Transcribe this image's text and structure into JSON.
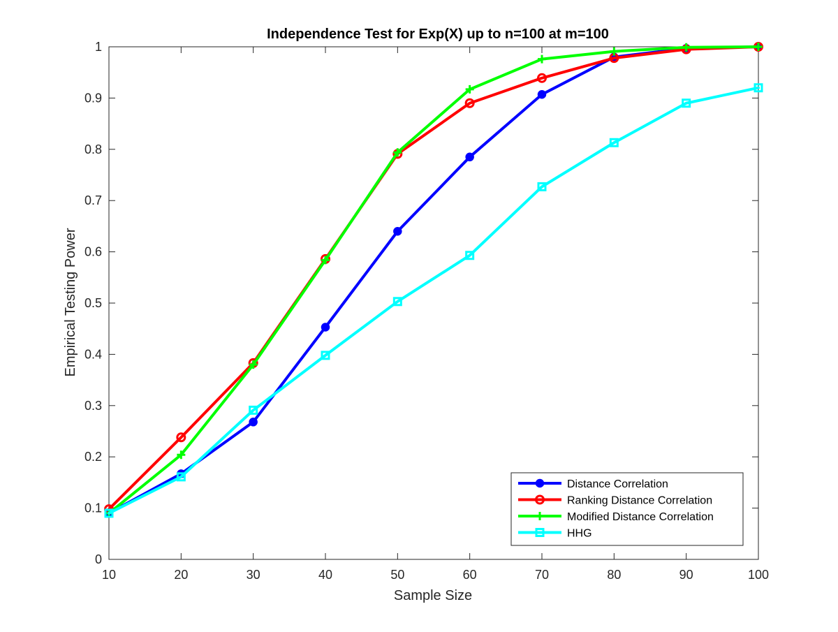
{
  "chart_data": {
    "type": "line",
    "title": "Independence Test for Exp(X) up to n=100 at m=100",
    "xlabel": "Sample Size",
    "ylabel": "Empirical Testing Power",
    "xlim": [
      10,
      100
    ],
    "ylim": [
      0,
      1
    ],
    "xticks": [
      10,
      20,
      30,
      40,
      50,
      60,
      70,
      80,
      90,
      100
    ],
    "yticks": [
      0,
      0.1,
      0.2,
      0.3,
      0.4,
      0.5,
      0.6,
      0.7,
      0.8,
      0.9,
      1
    ],
    "x": [
      10,
      20,
      30,
      40,
      50,
      60,
      70,
      80,
      90,
      100
    ],
    "grid": false,
    "legend_position": "bottom-right",
    "series": [
      {
        "name": "Distance Correlation",
        "color": "#0000ff",
        "marker": "filled-circle",
        "values": [
          0.09,
          0.167,
          0.268,
          0.453,
          0.64,
          0.785,
          0.907,
          0.98,
          0.997,
          1.0
        ]
      },
      {
        "name": "Ranking Distance Correlation",
        "color": "#ff0000",
        "marker": "open-circle",
        "values": [
          0.098,
          0.238,
          0.383,
          0.586,
          0.791,
          0.89,
          0.939,
          0.978,
          0.995,
          1.0
        ]
      },
      {
        "name": "Modified Distance Correlation",
        "color": "#00ff00",
        "marker": "plus",
        "values": [
          0.09,
          0.204,
          0.38,
          0.584,
          0.794,
          0.917,
          0.976,
          0.991,
          0.999,
          1.0
        ]
      },
      {
        "name": "HHG",
        "color": "#00ffff",
        "marker": "square",
        "values": [
          0.09,
          0.161,
          0.291,
          0.398,
          0.503,
          0.593,
          0.727,
          0.813,
          0.89,
          0.92
        ]
      }
    ]
  }
}
